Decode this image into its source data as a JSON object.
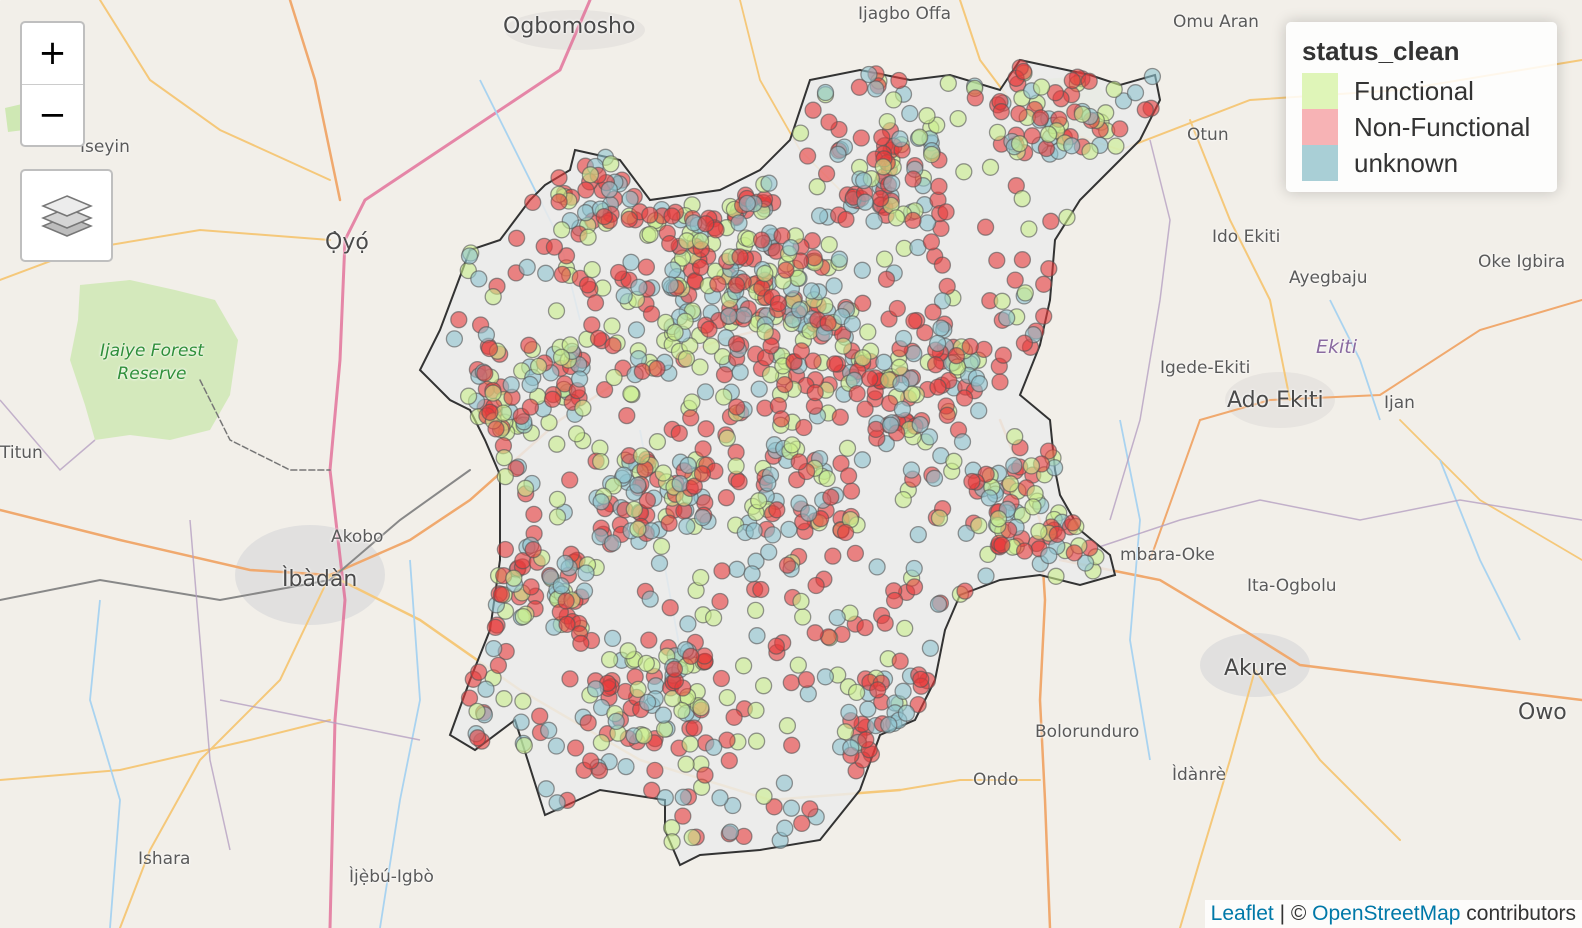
{
  "map": {
    "places": [
      {
        "name": "Ogbomosho",
        "cls": "city",
        "key": "ogbomosho"
      },
      {
        "name": "Ijagbo Offa",
        "cls": "small",
        "key": "ijagbo-offa"
      },
      {
        "name": "Omu Aran",
        "cls": "small",
        "key": "omu-aran"
      },
      {
        "name": "Iseyin",
        "cls": "small",
        "key": "iseyin"
      },
      {
        "name": "Ọ̀yọ́",
        "cls": "city",
        "key": "oyo"
      },
      {
        "name": "Otun",
        "cls": "small",
        "key": "otun"
      },
      {
        "name": "Ido Ekiti",
        "cls": "small",
        "key": "ido-ekiti"
      },
      {
        "name": "Ayegbaju",
        "cls": "small",
        "key": "ayegbaju"
      },
      {
        "name": "Oke Igbira",
        "cls": "small",
        "key": "oke-igbira"
      },
      {
        "name": "Ekiti",
        "cls": "region",
        "key": "ekiti"
      },
      {
        "name": "Igede-Ekiti",
        "cls": "small",
        "key": "igede-ekiti"
      },
      {
        "name": "Ado Ekiti",
        "cls": "city",
        "key": "ado-ekiti"
      },
      {
        "name": "Ijan",
        "cls": "small",
        "key": "ijan"
      },
      {
        "name": "Titun",
        "cls": "small",
        "key": "titun"
      },
      {
        "name": "Akobo",
        "cls": "small",
        "key": "akobo"
      },
      {
        "name": "Ìbàdàn",
        "cls": "city",
        "key": "ibadan"
      },
      {
        "name": "mbara-Oke",
        "cls": "small",
        "key": "mbara-oke"
      },
      {
        "name": "Ita-Ogbolu",
        "cls": "small",
        "key": "ita-ogbolu"
      },
      {
        "name": "Akure",
        "cls": "city",
        "key": "akure"
      },
      {
        "name": "Owo",
        "cls": "city",
        "key": "owo"
      },
      {
        "name": "Bolorunduro",
        "cls": "small",
        "key": "bolorunduro"
      },
      {
        "name": "Ondo",
        "cls": "small",
        "key": "ondo"
      },
      {
        "name": "Ìdànrè",
        "cls": "small",
        "key": "idanre"
      },
      {
        "name": "Ishara",
        "cls": "small",
        "key": "ishara"
      },
      {
        "name": "Ìjẹ̀bú-Igbò",
        "cls": "small",
        "key": "ijebu-igbo"
      }
    ],
    "forest": {
      "line1": "Ijaiye Forest",
      "line2": "Reserve"
    }
  },
  "zoom": {
    "in_label": "+",
    "out_label": "−"
  },
  "legend": {
    "title": "status_clean",
    "items": [
      {
        "label": "Functional",
        "color": "#dff5b8"
      },
      {
        "label": "Non-Functional",
        "color": "#f7b3b5"
      },
      {
        "label": "unknown",
        "color": "#a9cfd6"
      }
    ]
  },
  "attribution": {
    "leaflet": "Leaflet",
    "sep": " | © ",
    "osm": "OpenStreetMap",
    "suffix": " contributors"
  },
  "markers": {
    "colors": {
      "functional": "#c9ef8a",
      "non_functional": "#e83a3a",
      "unknown": "#8ec3cf",
      "stroke": "#555555"
    }
  }
}
